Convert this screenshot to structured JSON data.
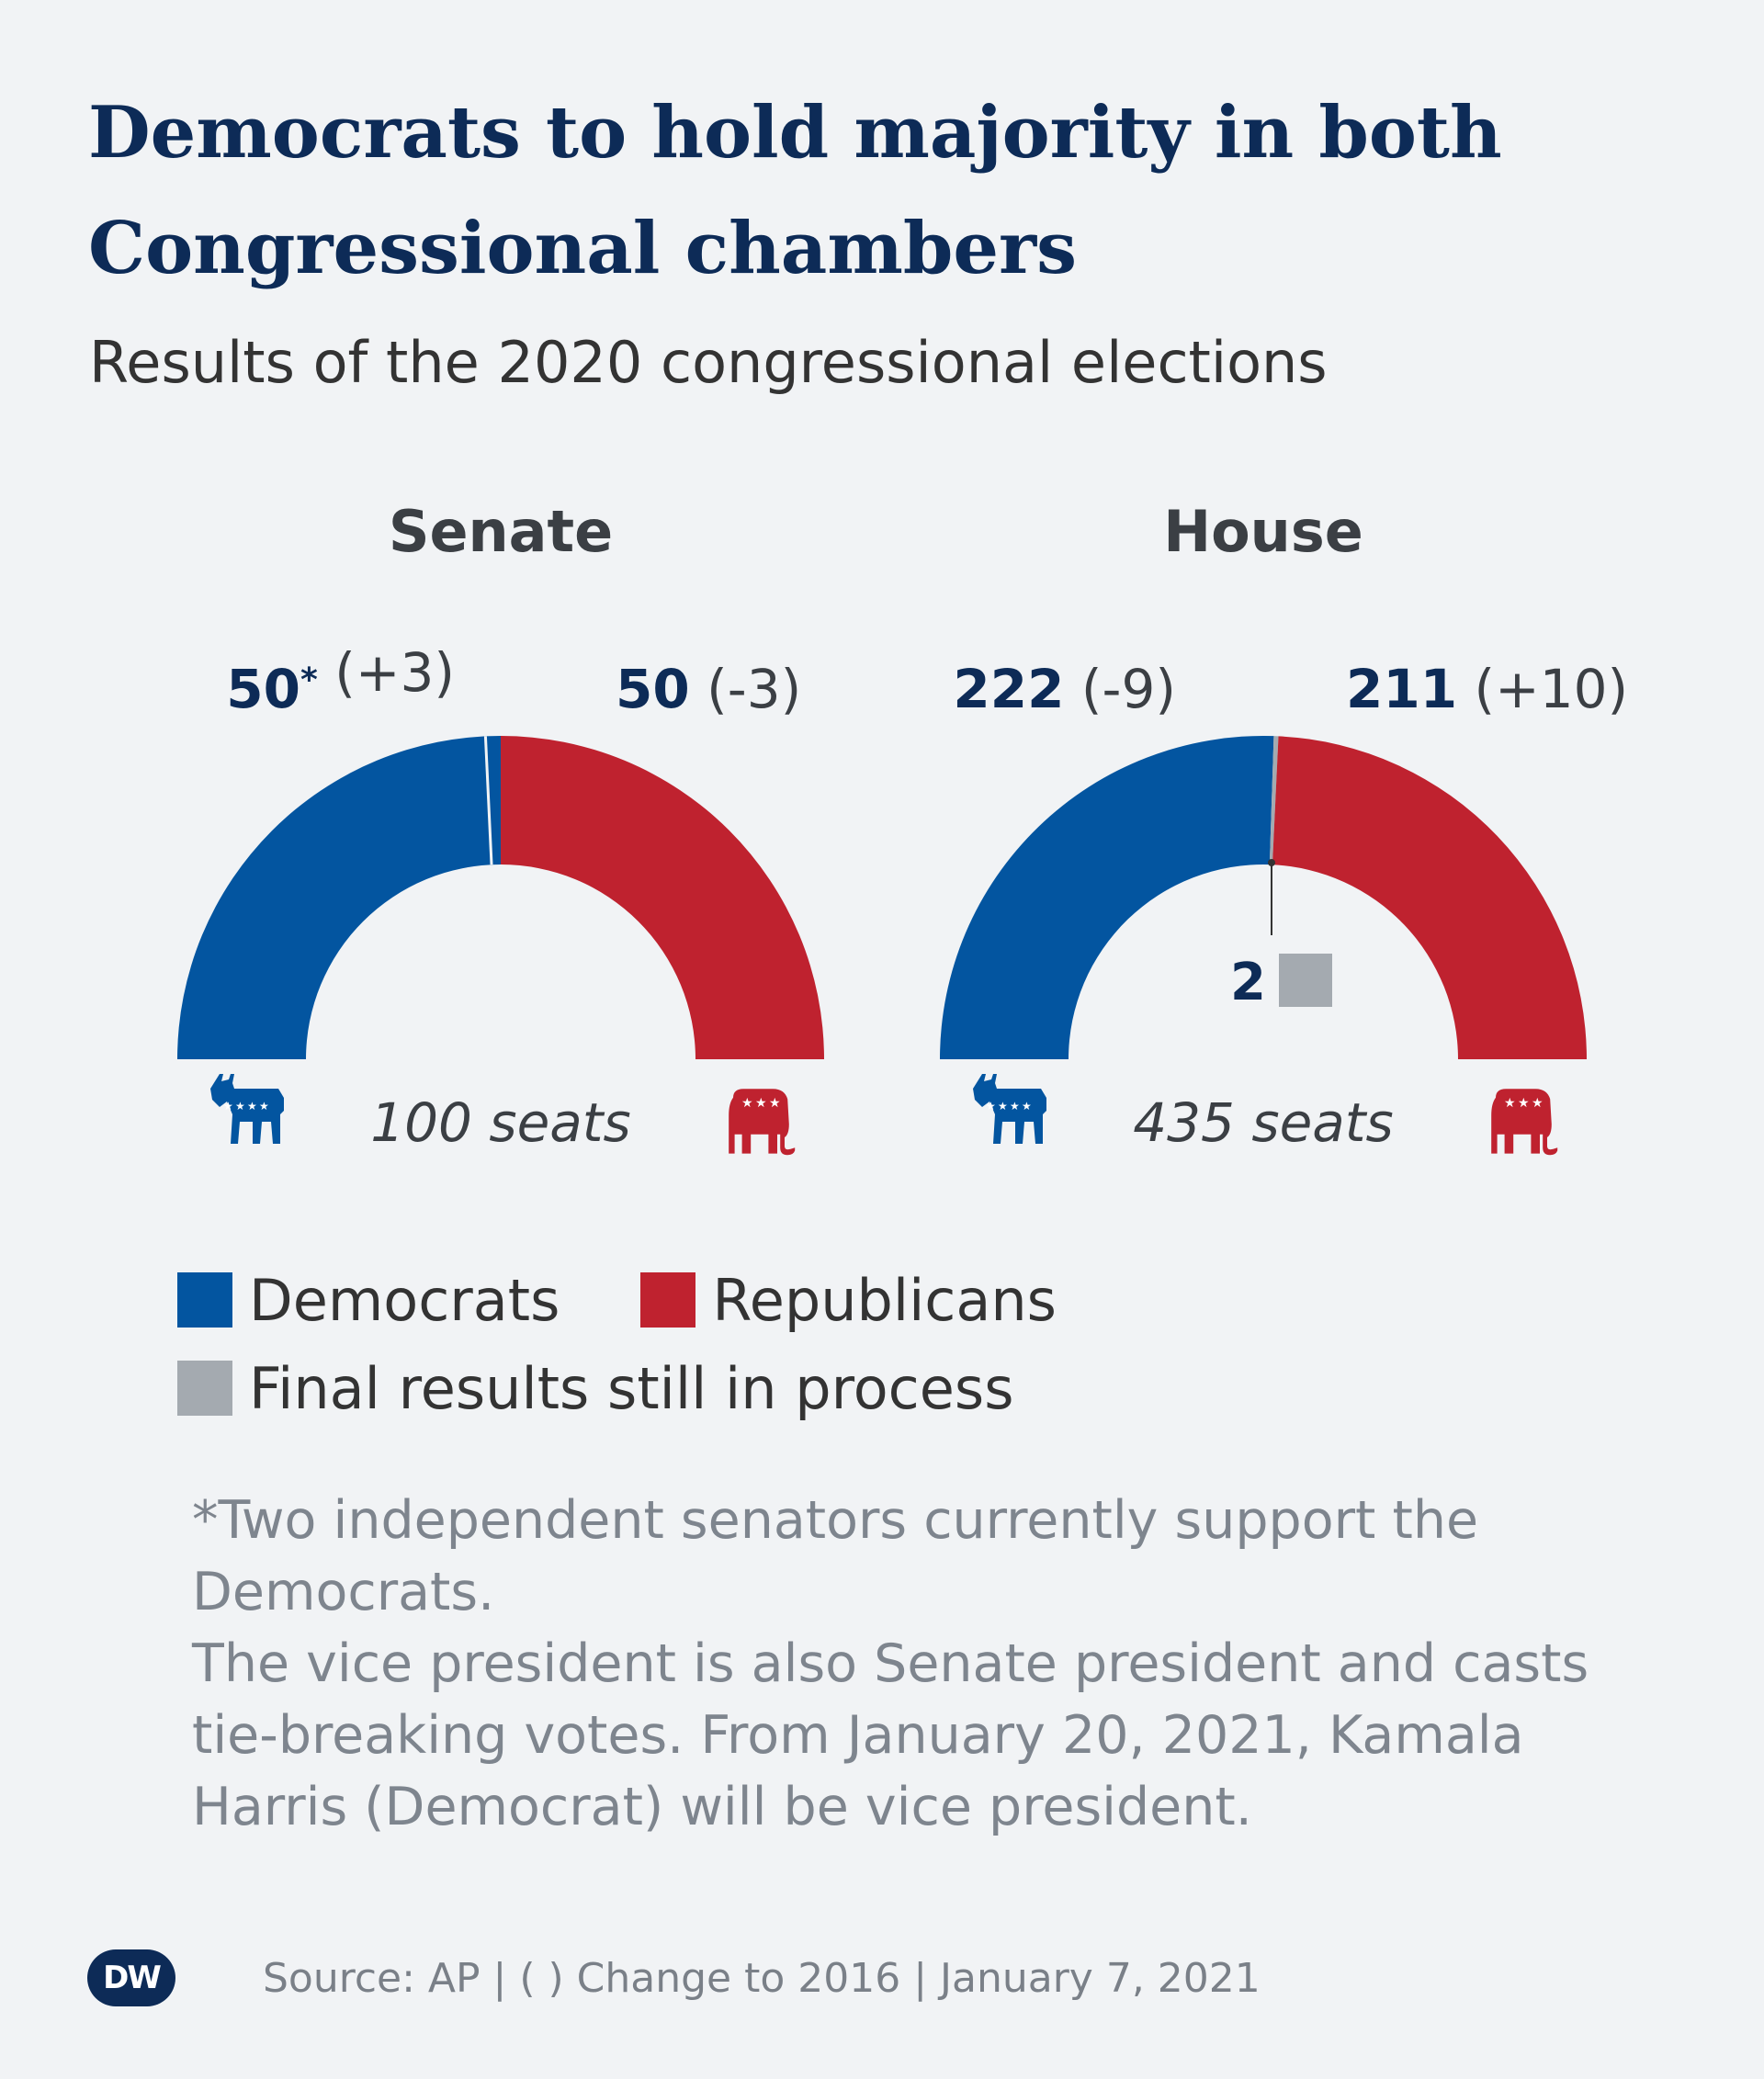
{
  "title": "Democrats to hold majority in both Congressional chambers",
  "subtitle": "Results of the 2020 congressional elections",
  "colors": {
    "democrats": "#0355a0",
    "republicans": "#bf222f",
    "pending": "#a4aab0",
    "title": "#0d2b57"
  },
  "legend": {
    "democrats": "Democrats",
    "republicans": "Republicans",
    "pending": "Final results still in process"
  },
  "icons": {
    "democrats": "donkey-icon",
    "republicans": "elephant-icon"
  },
  "chart_data": [
    {
      "type": "pie",
      "shape": "semicircle",
      "title": "Senate",
      "total_label": "100 seats",
      "total": 100,
      "series": [
        {
          "name": "Democrats",
          "value": 50,
          "value_label": "50",
          "marker": "*",
          "change": "(+3)",
          "note": "includes 2 independents"
        },
        {
          "name": "Republicans",
          "value": 50,
          "value_label": "50",
          "change": "(-3)"
        }
      ]
    },
    {
      "type": "pie",
      "shape": "semicircle",
      "title": "House",
      "total_label": "435 seats",
      "total": 435,
      "series": [
        {
          "name": "Democrats",
          "value": 222,
          "value_label": "222",
          "change": "(-9)"
        },
        {
          "name": "Final results still in process",
          "value": 2,
          "value_label": "2"
        },
        {
          "name": "Republicans",
          "value": 211,
          "value_label": "211",
          "change": "(+10)"
        }
      ]
    }
  ],
  "footnote": {
    "line1": "*Two independent senators currently support the Democrats.",
    "line2": "The vice president is also Senate president and casts tie-breaking votes. From January 20, 2021, Kamala Harris (Democrat) will be vice president."
  },
  "footer": {
    "logo": "DW",
    "source": "Source: AP | ( ) Change to 2016 | January 7, 2021"
  }
}
